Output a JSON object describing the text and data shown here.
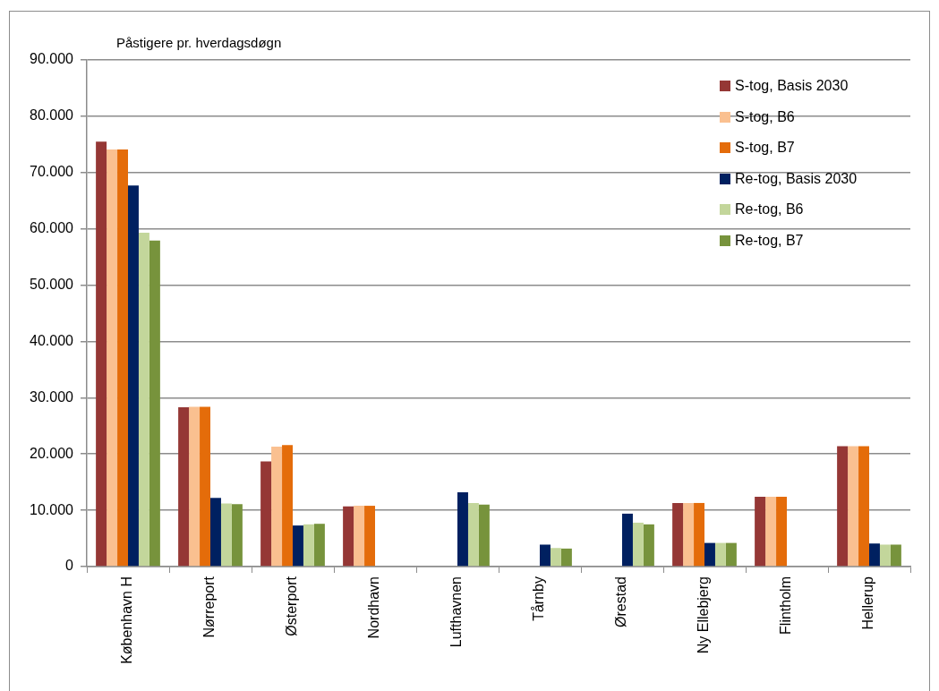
{
  "chart_data": {
    "type": "bar",
    "ylabel": "Påstigere pr. hverdagsdøgn",
    "categories": [
      "København H",
      "Nørreport",
      "Østerport",
      "Nordhavn",
      "Lufthavnen",
      "Tårnby",
      "Ørestad",
      "Ny Ellebjerg",
      "Flintholm",
      "Hellerup"
    ],
    "series": [
      {
        "name": "S-tog, Basis 2030",
        "color": "#953735",
        "values": [
          75500,
          28300,
          18700,
          10700,
          null,
          null,
          null,
          11300,
          12400,
          21400
        ]
      },
      {
        "name": "S-tog, B6",
        "color": "#fac090",
        "values": [
          74100,
          28400,
          21300,
          10800,
          null,
          null,
          null,
          11300,
          12400,
          21400
        ]
      },
      {
        "name": "S-tog, B7",
        "color": "#e46c0a",
        "values": [
          74100,
          28400,
          21600,
          10800,
          null,
          null,
          null,
          11300,
          12400,
          21400
        ]
      },
      {
        "name": "Re-tog, Basis 2030",
        "color": "#002060",
        "values": [
          67700,
          12200,
          7300,
          null,
          13200,
          3900,
          9400,
          4200,
          null,
          4100
        ]
      },
      {
        "name": "Re-tog, B6",
        "color": "#c3d69b",
        "values": [
          59300,
          11200,
          7500,
          null,
          11300,
          3300,
          7800,
          4200,
          null,
          3900
        ]
      },
      {
        "name": "Re-tog, B7",
        "color": "#77933c",
        "values": [
          57900,
          11100,
          7600,
          null,
          11000,
          3200,
          7500,
          4200,
          null,
          3900
        ]
      }
    ],
    "ylim": [
      0,
      90000
    ],
    "yticks": [
      0,
      {
        "value": 10000,
        "label": "10.000"
      },
      {
        "value": 20000,
        "label": "20.000"
      },
      {
        "value": 30000,
        "label": "30.000"
      },
      {
        "value": 40000,
        "label": "40.000"
      },
      {
        "value": 50000,
        "label": "50.000"
      },
      {
        "value": 60000,
        "label": "60.000"
      },
      {
        "value": 70000,
        "label": "70.000"
      },
      {
        "value": 80000,
        "label": "80.000"
      },
      {
        "value": 90000,
        "label": "90.000"
      }
    ],
    "grid": "y",
    "legend": "top right"
  }
}
